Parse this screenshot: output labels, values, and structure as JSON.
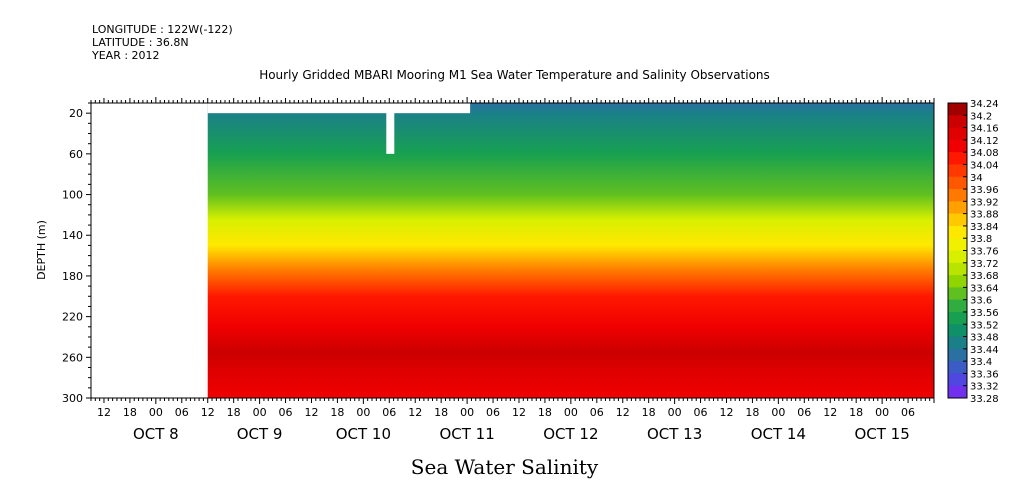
{
  "header": {
    "longitude": "LONGITUDE : 122W(-122)",
    "latitude": "LATITUDE : 36.8N",
    "year": "YEAR : 2012"
  },
  "chart_data": {
    "type": "heatmap",
    "title": "Hourly Gridded MBARI Mooring M1 Sea Water Temperature and Salinity Observations",
    "xlabel": "Sea Water Salinity",
    "ylabel": "DEPTH (m)",
    "x_range": [
      "2012-10-07T09:00",
      "2012-10-15T12:00"
    ],
    "data_start": "2012-10-08T12:00",
    "y_range": [
      300,
      10
    ],
    "y_reversed": true,
    "y_ticks": [
      20,
      60,
      100,
      140,
      180,
      220,
      260,
      300
    ],
    "x_hour_ticks": [
      {
        "t": "2012-10-07T12:00",
        "label": "12"
      },
      {
        "t": "2012-10-07T18:00",
        "label": "18"
      },
      {
        "t": "2012-10-08T00:00",
        "label": "00"
      },
      {
        "t": "2012-10-08T06:00",
        "label": "06"
      },
      {
        "t": "2012-10-08T12:00",
        "label": "12"
      },
      {
        "t": "2012-10-08T18:00",
        "label": "18"
      },
      {
        "t": "2012-10-09T00:00",
        "label": "00"
      },
      {
        "t": "2012-10-09T06:00",
        "label": "06"
      },
      {
        "t": "2012-10-09T12:00",
        "label": "12"
      },
      {
        "t": "2012-10-09T18:00",
        "label": "18"
      },
      {
        "t": "2012-10-10T00:00",
        "label": "00"
      },
      {
        "t": "2012-10-10T06:00",
        "label": "06"
      },
      {
        "t": "2012-10-10T12:00",
        "label": "12"
      },
      {
        "t": "2012-10-10T18:00",
        "label": "18"
      },
      {
        "t": "2012-10-11T00:00",
        "label": "00"
      },
      {
        "t": "2012-10-11T06:00",
        "label": "06"
      },
      {
        "t": "2012-10-11T12:00",
        "label": "12"
      },
      {
        "t": "2012-10-11T18:00",
        "label": "18"
      },
      {
        "t": "2012-10-12T00:00",
        "label": "00"
      },
      {
        "t": "2012-10-12T06:00",
        "label": "06"
      },
      {
        "t": "2012-10-12T12:00",
        "label": "12"
      },
      {
        "t": "2012-10-12T18:00",
        "label": "18"
      },
      {
        "t": "2012-10-13T00:00",
        "label": "00"
      },
      {
        "t": "2012-10-13T06:00",
        "label": "06"
      },
      {
        "t": "2012-10-13T12:00",
        "label": "12"
      },
      {
        "t": "2012-10-13T18:00",
        "label": "18"
      },
      {
        "t": "2012-10-14T00:00",
        "label": "00"
      },
      {
        "t": "2012-10-14T06:00",
        "label": "06"
      },
      {
        "t": "2012-10-14T12:00",
        "label": "12"
      },
      {
        "t": "2012-10-14T18:00",
        "label": "18"
      },
      {
        "t": "2012-10-15T00:00",
        "label": "00"
      },
      {
        "t": "2012-10-15T06:00",
        "label": "06"
      }
    ],
    "x_day_labels": [
      {
        "t": "2012-10-08T00:00",
        "label": "OCT  8"
      },
      {
        "t": "2012-10-09T00:00",
        "label": "OCT  9"
      },
      {
        "t": "2012-10-10T00:00",
        "label": "OCT 10"
      },
      {
        "t": "2012-10-11T00:00",
        "label": "OCT 11"
      },
      {
        "t": "2012-10-12T00:00",
        "label": "OCT 12"
      },
      {
        "t": "2012-10-13T00:00",
        "label": "OCT 13"
      },
      {
        "t": "2012-10-14T00:00",
        "label": "OCT 14"
      },
      {
        "t": "2012-10-15T00:00",
        "label": "OCT 15"
      }
    ],
    "colorbar": {
      "levels": [
        "34.24",
        "34.2",
        "34.16",
        "34.12",
        "34.08",
        "34.04",
        "34",
        "33.96",
        "33.92",
        "33.88",
        "33.84",
        "33.8",
        "33.76",
        "33.72",
        "33.68",
        "33.64",
        "33.6",
        "33.56",
        "33.52",
        "33.48",
        "33.44",
        "33.4",
        "33.36",
        "33.32",
        "33.28"
      ],
      "colors": [
        "#a00000",
        "#cc0000",
        "#e00000",
        "#f00000",
        "#ff1800",
        "#ff3800",
        "#ff5800",
        "#ff7800",
        "#ffa000",
        "#ffc800",
        "#ffe800",
        "#f0f000",
        "#d8f000",
        "#b8e400",
        "#90d400",
        "#60c020",
        "#30ac40",
        "#18a050",
        "#109068",
        "#1a8088",
        "#2a70a0",
        "#3a5cc4",
        "#5046e0",
        "#7030ee",
        "#9a20f8"
      ]
    },
    "profile": [
      {
        "depth": 10,
        "salinity": 33.42
      },
      {
        "depth": 20,
        "salinity": 33.48
      },
      {
        "depth": 60,
        "salinity": 33.56
      },
      {
        "depth": 100,
        "salinity": 33.64
      },
      {
        "depth": 125,
        "salinity": 33.74
      },
      {
        "depth": 150,
        "salinity": 33.86
      },
      {
        "depth": 175,
        "salinity": 33.98
      },
      {
        "depth": 200,
        "salinity": 34.06
      },
      {
        "depth": 230,
        "salinity": 34.13
      },
      {
        "depth": 255,
        "salinity": 34.19
      },
      {
        "depth": 275,
        "salinity": 34.15
      },
      {
        "depth": 300,
        "salinity": 34.13
      }
    ]
  }
}
